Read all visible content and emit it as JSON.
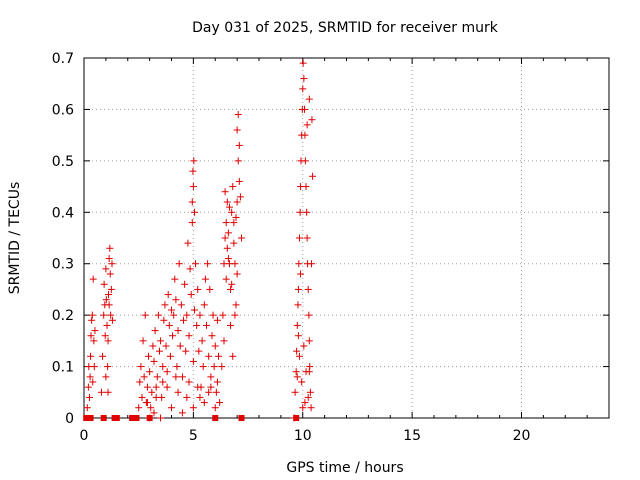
{
  "chart_data": {
    "type": "scatter",
    "title": "Day 031 of 2025, SRMTID for receiver murk",
    "xlabel": "GPS time / hours",
    "ylabel": "SRMTID / TECUs",
    "xlim": [
      0,
      24
    ],
    "ylim": [
      0,
      0.7
    ],
    "x_ticks": [
      0,
      5,
      10,
      15,
      20
    ],
    "y_ticks": [
      0,
      0.1,
      0.2,
      0.3,
      0.4,
      0.5,
      0.6,
      0.7
    ],
    "x_tick_labels": [
      "0",
      "5",
      "10",
      "15",
      "20"
    ],
    "y_tick_labels": [
      "0",
      "0.1",
      "0.2",
      "0.3",
      "0.4",
      "0.5",
      "0.6",
      "0.7"
    ],
    "grid": true,
    "marker_color": "#e00000",
    "series": [
      {
        "marker": "plus",
        "points": [
          [
            0.15,
            0.02
          ],
          [
            0.2,
            0.06
          ],
          [
            0.22,
            0.1
          ],
          [
            0.25,
            0.04
          ],
          [
            0.28,
            0.08
          ],
          [
            0.3,
            0.12
          ],
          [
            0.32,
            0.16
          ],
          [
            0.35,
            0.19
          ],
          [
            0.38,
            0.2
          ],
          [
            0.4,
            0.07
          ],
          [
            0.42,
            0.27
          ],
          [
            0.45,
            0.15
          ],
          [
            0.47,
            0.1
          ],
          [
            0.5,
            0.17
          ],
          [
            0.8,
            0.05
          ],
          [
            0.85,
            0.12
          ],
          [
            0.9,
            0.2
          ],
          [
            0.92,
            0.26
          ],
          [
            0.95,
            0.22
          ],
          [
            1.0,
            0.29
          ],
          [
            1.02,
            0.23
          ],
          [
            1.05,
            0.18
          ],
          [
            1.08,
            0.1
          ],
          [
            1.1,
            0.15
          ],
          [
            1.12,
            0.24
          ],
          [
            1.15,
            0.31
          ],
          [
            1.18,
            0.33
          ],
          [
            1.2,
            0.28
          ],
          [
            1.22,
            0.2
          ],
          [
            1.25,
            0.25
          ],
          [
            1.28,
            0.3
          ],
          [
            1.3,
            0.19
          ],
          [
            1.1,
            0.05
          ],
          [
            1.0,
            0.08
          ],
          [
            0.97,
            0.16
          ],
          [
            1.15,
            0.22
          ],
          [
            2.5,
            0.02
          ],
          [
            2.55,
            0.07
          ],
          [
            2.6,
            0.1
          ],
          [
            2.65,
            0.04
          ],
          [
            2.7,
            0.15
          ],
          [
            2.75,
            0.08
          ],
          [
            2.8,
            0.2
          ],
          [
            2.85,
            0.03
          ],
          [
            2.9,
            0.06
          ],
          [
            2.95,
            0.12
          ],
          [
            3.0,
            0.09
          ],
          [
            3.05,
            0.02
          ],
          [
            3.1,
            0.05
          ],
          [
            3.15,
            0.14
          ],
          [
            3.2,
            0.11
          ],
          [
            3.25,
            0.17
          ],
          [
            3.3,
            0.06
          ],
          [
            3.35,
            0.08
          ],
          [
            3.4,
            0.2
          ],
          [
            3.45,
            0.13
          ],
          [
            3.5,
            0.15
          ],
          [
            3.55,
            0.04
          ],
          [
            3.6,
            0.1
          ],
          [
            3.65,
            0.19
          ],
          [
            3.7,
            0.22
          ],
          [
            3.75,
            0.14
          ],
          [
            3.8,
            0.09
          ],
          [
            3.85,
            0.24
          ],
          [
            3.9,
            0.18
          ],
          [
            3.95,
            0.12
          ],
          [
            4.0,
            0.21
          ],
          [
            4.05,
            0.16
          ],
          [
            4.1,
            0.2
          ],
          [
            4.15,
            0.27
          ],
          [
            4.2,
            0.23
          ],
          [
            4.25,
            0.1
          ],
          [
            4.3,
            0.17
          ],
          [
            4.35,
            0.3
          ],
          [
            4.4,
            0.14
          ],
          [
            4.45,
            0.22
          ],
          [
            4.5,
            0.08
          ],
          [
            4.55,
            0.19
          ],
          [
            4.6,
            0.26
          ],
          [
            4.65,
            0.13
          ],
          [
            4.7,
            0.2
          ],
          [
            4.75,
            0.34
          ],
          [
            4.8,
            0.16
          ],
          [
            4.85,
            0.29
          ],
          [
            4.9,
            0.24
          ],
          [
            4.95,
            0.38
          ],
          [
            5.0,
            0.11
          ],
          [
            5.05,
            0.21
          ],
          [
            5.1,
            0.3
          ],
          [
            5.15,
            0.18
          ],
          [
            5.2,
            0.25
          ],
          [
            5.25,
            0.13
          ],
          [
            5.3,
            0.2
          ],
          [
            5.35,
            0.06
          ],
          [
            5.4,
            0.15
          ],
          [
            5.45,
            0.1
          ],
          [
            5.5,
            0.22
          ],
          [
            5.55,
            0.27
          ],
          [
            5.6,
            0.18
          ],
          [
            5.65,
            0.3
          ],
          [
            5.7,
            0.12
          ],
          [
            5.75,
            0.25
          ],
          [
            5.8,
            0.08
          ],
          [
            5.85,
            0.16
          ],
          [
            5.9,
            0.2
          ],
          [
            5.95,
            0.1
          ],
          [
            6.0,
            0.14
          ],
          [
            6.05,
            0.05
          ],
          [
            6.1,
            0.19
          ],
          [
            6.15,
            0.12
          ],
          [
            6.2,
            0.03
          ],
          [
            3.0,
            0.0
          ],
          [
            3.2,
            0.01
          ],
          [
            3.5,
            0.0
          ],
          [
            4.0,
            0.02
          ],
          [
            4.5,
            0.01
          ],
          [
            5.0,
            0.02
          ],
          [
            5.5,
            0.03
          ],
          [
            6.0,
            0.02
          ],
          [
            3.3,
            0.04
          ],
          [
            3.8,
            0.06
          ],
          [
            4.3,
            0.05
          ],
          [
            4.8,
            0.07
          ],
          [
            5.3,
            0.04
          ],
          [
            5.8,
            0.06
          ],
          [
            2.9,
            0.03
          ],
          [
            3.6,
            0.07
          ],
          [
            4.2,
            0.08
          ],
          [
            4.7,
            0.04
          ],
          [
            5.2,
            0.06
          ],
          [
            5.7,
            0.05
          ],
          [
            6.1,
            0.07
          ],
          [
            4.95,
            0.42
          ],
          [
            5.0,
            0.45
          ],
          [
            5.02,
            0.5
          ],
          [
            4.98,
            0.48
          ],
          [
            5.05,
            0.4
          ],
          [
            6.3,
            0.1
          ],
          [
            6.35,
            0.2
          ],
          [
            6.4,
            0.3
          ],
          [
            6.45,
            0.35
          ],
          [
            6.5,
            0.38
          ],
          [
            6.55,
            0.42
          ],
          [
            6.6,
            0.36
          ],
          [
            6.65,
            0.3
          ],
          [
            6.7,
            0.25
          ],
          [
            6.75,
            0.4
          ],
          [
            6.8,
            0.45
          ],
          [
            6.85,
            0.38
          ],
          [
            6.9,
            0.3
          ],
          [
            6.95,
            0.22
          ],
          [
            7.0,
            0.42
          ],
          [
            7.05,
            0.5
          ],
          [
            7.1,
            0.53
          ],
          [
            7.15,
            0.43
          ],
          [
            7.2,
            0.35
          ],
          [
            6.5,
            0.27
          ],
          [
            6.6,
            0.31
          ],
          [
            6.7,
            0.18
          ],
          [
            6.8,
            0.12
          ],
          [
            6.9,
            0.2
          ],
          [
            7.0,
            0.28
          ],
          [
            6.4,
            0.15
          ],
          [
            6.45,
            0.44
          ],
          [
            6.55,
            0.33
          ],
          [
            6.65,
            0.41
          ],
          [
            6.75,
            0.26
          ],
          [
            6.85,
            0.34
          ],
          [
            6.95,
            0.39
          ],
          [
            7.0,
            0.56
          ],
          [
            7.05,
            0.59
          ],
          [
            7.1,
            0.46
          ],
          [
            9.6,
            0.0
          ],
          [
            9.65,
            0.05
          ],
          [
            9.7,
            0.09
          ],
          [
            9.72,
            0.13
          ],
          [
            9.75,
            0.18
          ],
          [
            9.78,
            0.22
          ],
          [
            9.8,
            0.25
          ],
          [
            9.82,
            0.3
          ],
          [
            9.85,
            0.35
          ],
          [
            9.88,
            0.4
          ],
          [
            9.9,
            0.45
          ],
          [
            9.92,
            0.5
          ],
          [
            9.95,
            0.55
          ],
          [
            9.98,
            0.6
          ],
          [
            10.0,
            0.64
          ],
          [
            10.02,
            0.69
          ],
          [
            10.05,
            0.66
          ],
          [
            10.08,
            0.6
          ],
          [
            10.1,
            0.55
          ],
          [
            10.12,
            0.5
          ],
          [
            10.15,
            0.45
          ],
          [
            10.18,
            0.4
          ],
          [
            10.2,
            0.35
          ],
          [
            10.22,
            0.3
          ],
          [
            10.25,
            0.25
          ],
          [
            10.28,
            0.2
          ],
          [
            10.3,
            0.15
          ],
          [
            10.32,
            0.1
          ],
          [
            10.35,
            0.05
          ],
          [
            10.38,
            0.02
          ],
          [
            9.75,
            0.08
          ],
          [
            9.85,
            0.12
          ],
          [
            9.95,
            0.07
          ],
          [
            10.05,
            0.14
          ],
          [
            10.15,
            0.09
          ],
          [
            10.25,
            0.04
          ],
          [
            10.4,
            0.3
          ],
          [
            10.45,
            0.47
          ],
          [
            10.42,
            0.58
          ],
          [
            10.3,
            0.62
          ],
          [
            10.2,
            0.57
          ],
          [
            9.9,
            0.28
          ],
          [
            9.8,
            0.16
          ],
          [
            10.0,
            0.02
          ],
          [
            10.1,
            0.03
          ],
          [
            10.3,
            0.09
          ]
        ]
      },
      {
        "marker": "square",
        "points": [
          [
            0.1,
            0.0
          ],
          [
            0.2,
            0.0
          ],
          [
            0.3,
            0.0
          ],
          [
            0.9,
            0.0
          ],
          [
            1.4,
            0.0
          ],
          [
            1.5,
            0.0
          ],
          [
            2.2,
            0.0
          ],
          [
            2.3,
            0.0
          ],
          [
            2.4,
            0.0
          ],
          [
            3.0,
            0.0
          ],
          [
            6.0,
            0.0
          ],
          [
            7.2,
            0.0
          ],
          [
            9.7,
            0.0
          ]
        ]
      }
    ]
  }
}
